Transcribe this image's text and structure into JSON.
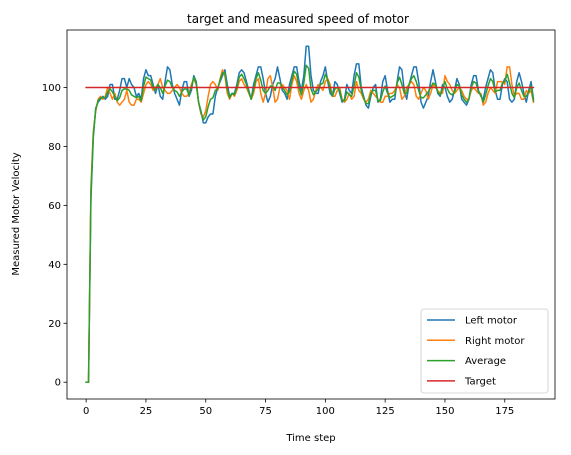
{
  "chart_data": {
    "type": "line",
    "title": "target and measured speed of motor",
    "xlabel": "Time step",
    "ylabel": "Measured Motor Velocity",
    "xlim": [
      -8,
      196
    ],
    "ylim": [
      -5.7,
      119.5
    ],
    "xticks": [
      0,
      25,
      50,
      75,
      100,
      125,
      150,
      175
    ],
    "yticks": [
      0,
      20,
      40,
      60,
      80,
      100
    ],
    "legend_position": "lower-right",
    "grid": false,
    "series": [
      {
        "name": "Left motor",
        "color": "#1f77b4",
        "x": [
          0,
          1,
          2,
          3,
          4,
          5,
          6,
          7,
          8,
          9,
          10,
          11,
          12,
          13,
          14,
          15,
          16,
          17,
          18,
          19,
          20,
          21,
          22,
          23,
          24,
          25,
          26,
          27,
          28,
          29,
          30,
          31,
          32,
          33,
          34,
          35,
          36,
          37,
          38,
          39,
          40,
          41,
          42,
          43,
          44,
          45,
          46,
          47,
          48,
          49,
          50,
          51,
          52,
          53,
          54,
          55,
          56,
          57,
          58,
          59,
          60,
          61,
          62,
          63,
          64,
          65,
          66,
          67,
          68,
          69,
          70,
          71,
          72,
          73,
          74,
          75,
          76,
          77,
          78,
          79,
          80,
          81,
          82,
          83,
          84,
          85,
          86,
          87,
          88,
          89,
          90,
          91,
          92,
          93,
          94,
          95,
          96,
          97,
          98,
          99,
          100,
          101,
          102,
          103,
          104,
          105,
          106,
          107,
          108,
          109,
          110,
          111,
          112,
          113,
          114,
          115,
          116,
          117,
          118,
          119,
          120,
          121,
          122,
          123,
          124,
          125,
          126,
          127,
          128,
          129,
          130,
          131,
          132,
          133,
          134,
          135,
          136,
          137,
          138,
          139,
          140,
          141,
          142,
          143,
          144,
          145,
          146,
          147,
          148,
          149,
          150,
          151,
          152,
          153,
          154,
          155,
          156,
          157,
          158,
          159,
          160,
          161,
          162,
          163,
          164,
          165,
          166,
          167,
          168,
          169,
          170,
          171,
          172,
          173,
          174,
          175,
          176,
          177,
          178,
          179,
          180,
          181,
          182,
          183,
          184,
          185,
          186,
          187
        ],
        "values": [
          0,
          0,
          62,
          83,
          93,
          95,
          96,
          97,
          96,
          97,
          101,
          101,
          96,
          96,
          99,
          103,
          103,
          100,
          103,
          101,
          100,
          97,
          98,
          96,
          103,
          106,
          104,
          104,
          101,
          98,
          101,
          97,
          96,
          102,
          107,
          106,
          101,
          98,
          96,
          94,
          99,
          102,
          102,
          97,
          99,
          104,
          102,
          95,
          92,
          88,
          88,
          90,
          91,
          91,
          97,
          100,
          102,
          104,
          106,
          101,
          97,
          98,
          98,
          101,
          105,
          106,
          105,
          102,
          99,
          96,
          101,
          104,
          107,
          107,
          103,
          98,
          95,
          97,
          101,
          103,
          107,
          103,
          99,
          98,
          96,
          101,
          104,
          107,
          107,
          102,
          99,
          104,
          114,
          114,
          104,
          99,
          98,
          98,
          102,
          104,
          107,
          102,
          98,
          97,
          102,
          101,
          98,
          95,
          96,
          101,
          99,
          98,
          104,
          108,
          108,
          100,
          97,
          94,
          93,
          97,
          100,
          101,
          95,
          96,
          102,
          104,
          99,
          95,
          96,
          96,
          102,
          107,
          106,
          99,
          96,
          101,
          104,
          107,
          107,
          102,
          95,
          93,
          95,
          97,
          102,
          106,
          102,
          98,
          97,
          101,
          100,
          97,
          95,
          96,
          99,
          103,
          101,
          96,
          95,
          94,
          96,
          101,
          104,
          104,
          99,
          97,
          96,
          100,
          103,
          106,
          105,
          99,
          96,
          96,
          101,
          103,
          102,
          96,
          95,
          96,
          102,
          105,
          102,
          98,
          95,
          99,
          102,
          96
        ]
      },
      {
        "name": "Right motor",
        "color": "#ff7f0e",
        "x": [
          0,
          1,
          2,
          3,
          4,
          5,
          6,
          7,
          8,
          9,
          10,
          11,
          12,
          13,
          14,
          15,
          16,
          17,
          18,
          19,
          20,
          21,
          22,
          23,
          24,
          25,
          26,
          27,
          28,
          29,
          30,
          31,
          32,
          33,
          34,
          35,
          36,
          37,
          38,
          39,
          40,
          41,
          42,
          43,
          44,
          45,
          46,
          47,
          48,
          49,
          50,
          51,
          52,
          53,
          54,
          55,
          56,
          57,
          58,
          59,
          60,
          61,
          62,
          63,
          64,
          65,
          66,
          67,
          68,
          69,
          70,
          71,
          72,
          73,
          74,
          75,
          76,
          77,
          78,
          79,
          80,
          81,
          82,
          83,
          84,
          85,
          86,
          87,
          88,
          89,
          90,
          91,
          92,
          93,
          94,
          95,
          96,
          97,
          98,
          99,
          100,
          101,
          102,
          103,
          104,
          105,
          106,
          107,
          108,
          109,
          110,
          111,
          112,
          113,
          114,
          115,
          116,
          117,
          118,
          119,
          120,
          121,
          122,
          123,
          124,
          125,
          126,
          127,
          128,
          129,
          130,
          131,
          132,
          133,
          134,
          135,
          136,
          137,
          138,
          139,
          140,
          141,
          142,
          143,
          144,
          145,
          146,
          147,
          148,
          149,
          150,
          151,
          152,
          153,
          154,
          155,
          156,
          157,
          158,
          159,
          160,
          161,
          162,
          163,
          164,
          165,
          166,
          167,
          168,
          169,
          170,
          171,
          172,
          173,
          174,
          175,
          176,
          177,
          178,
          179,
          180,
          181,
          182,
          183,
          184,
          185,
          186,
          187
        ],
        "values": [
          0,
          0,
          66,
          85,
          92,
          96,
          97,
          96,
          97,
          100,
          98,
          96,
          98,
          95,
          94,
          95,
          96,
          99,
          95,
          94,
          94,
          96,
          96,
          95,
          98,
          101,
          102,
          101,
          99,
          100,
          101,
          103,
          100,
          99,
          98,
          98,
          99,
          100,
          101,
          100,
          98,
          97,
          97,
          98,
          101,
          103,
          101,
          95,
          91,
          90,
          92,
          97,
          101,
          102,
          101,
          99,
          103,
          106,
          104,
          98,
          96,
          98,
          97,
          99,
          102,
          103,
          101,
          100,
          98,
          96,
          98,
          102,
          103,
          98,
          95,
          98,
          103,
          104,
          100,
          95,
          96,
          100,
          101,
          100,
          99,
          96,
          101,
          104,
          102,
          98,
          96,
          99,
          101,
          99,
          95,
          96,
          99,
          101,
          100,
          99,
          102,
          103,
          101,
          97,
          97,
          99,
          100,
          96,
          95,
          96,
          98,
          96,
          97,
          102,
          99,
          98,
          96,
          95,
          96,
          99,
          98,
          97,
          96,
          95,
          95,
          97,
          97,
          98,
          98,
          99,
          101,
          100,
          96,
          97,
          100,
          101,
          102,
          101,
          97,
          96,
          98,
          100,
          99,
          96,
          98,
          101,
          100,
          99,
          98,
          98,
          104,
          102,
          101,
          99,
          98,
          99,
          100,
          99,
          97,
          96,
          96,
          99,
          100,
          99,
          98,
          98,
          94,
          95,
          98,
          100,
          99,
          98,
          102,
          102,
          102,
          101,
          107,
          107,
          101,
          97,
          98,
          98,
          96,
          96,
          99,
          98,
          99,
          95
        ]
      },
      {
        "name": "Average",
        "color": "#2ca02c",
        "x": [
          0,
          1,
          2,
          3,
          4,
          5,
          6,
          7,
          8,
          9,
          10,
          11,
          12,
          13,
          14,
          15,
          16,
          17,
          18,
          19,
          20,
          21,
          22,
          23,
          24,
          25,
          26,
          27,
          28,
          29,
          30,
          31,
          32,
          33,
          34,
          35,
          36,
          37,
          38,
          39,
          40,
          41,
          42,
          43,
          44,
          45,
          46,
          47,
          48,
          49,
          50,
          51,
          52,
          53,
          54,
          55,
          56,
          57,
          58,
          59,
          60,
          61,
          62,
          63,
          64,
          65,
          66,
          67,
          68,
          69,
          70,
          71,
          72,
          73,
          74,
          75,
          76,
          77,
          78,
          79,
          80,
          81,
          82,
          83,
          84,
          85,
          86,
          87,
          88,
          89,
          90,
          91,
          92,
          93,
          94,
          95,
          96,
          97,
          98,
          99,
          100,
          101,
          102,
          103,
          104,
          105,
          106,
          107,
          108,
          109,
          110,
          111,
          112,
          113,
          114,
          115,
          116,
          117,
          118,
          119,
          120,
          121,
          122,
          123,
          124,
          125,
          126,
          127,
          128,
          129,
          130,
          131,
          132,
          133,
          134,
          135,
          136,
          137,
          138,
          139,
          140,
          141,
          142,
          143,
          144,
          145,
          146,
          147,
          148,
          149,
          150,
          151,
          152,
          153,
          154,
          155,
          156,
          157,
          158,
          159,
          160,
          161,
          162,
          163,
          164,
          165,
          166,
          167,
          168,
          169,
          170,
          171,
          172,
          173,
          174,
          175,
          176,
          177,
          178,
          179,
          180,
          181,
          182,
          183,
          184,
          185,
          186,
          187
        ],
        "values": [
          0,
          0,
          64,
          84,
          92.5,
          95.5,
          96.5,
          96.5,
          96.5,
          98.5,
          99.5,
          98.5,
          97,
          95.5,
          96.5,
          99,
          99.5,
          99.5,
          99,
          97.5,
          97,
          96.5,
          97,
          95.5,
          100.5,
          103.5,
          103,
          102.5,
          100,
          99,
          101,
          100,
          98,
          100.5,
          102.5,
          102,
          100,
          99,
          98.5,
          97,
          98.5,
          99.5,
          99.5,
          97.5,
          100,
          103.5,
          101.5,
          95,
          91.5,
          89,
          90,
          93.5,
          96,
          96.5,
          99,
          99.5,
          102.5,
          105,
          105,
          99.5,
          96.5,
          98,
          97.5,
          100,
          103.5,
          104.5,
          103,
          101,
          98.5,
          96,
          99.5,
          103,
          105,
          102.5,
          99,
          98,
          99,
          100.5,
          100.5,
          99,
          101.5,
          101.5,
          100,
          99,
          97.5,
          98.5,
          102.5,
          105.5,
          104.5,
          100,
          97.5,
          101.5,
          107.5,
          106.5,
          99.5,
          97.5,
          98.5,
          99.5,
          101,
          101.5,
          104.5,
          102.5,
          99.5,
          97,
          99.5,
          100,
          99,
          95.5,
          95.5,
          98.5,
          97.5,
          97,
          100.5,
          105,
          103.5,
          99,
          96.5,
          94.5,
          94.5,
          98,
          99,
          99,
          95.5,
          95.5,
          98.5,
          100.5,
          98,
          96.5,
          97,
          97.5,
          101.5,
          103.5,
          101,
          98,
          98,
          101,
          103,
          104,
          102,
          99,
          96.5,
          96.5,
          97.5,
          98.5,
          100,
          101.5,
          101,
          98.5,
          97.5,
          99.5,
          102,
          99.5,
          98,
          97.5,
          98.5,
          101,
          100.5,
          97.5,
          96,
          95,
          96,
          100,
          102,
          101.5,
          98.5,
          97.5,
          95,
          97.5,
          100.5,
          103,
          102,
          98.5,
          99,
          99,
          101.5,
          102,
          104.5,
          101.5,
          98,
          96.5,
          100,
          101.5,
          99,
          97,
          97,
          98.5,
          100.5,
          95.5
        ]
      },
      {
        "name": "Target",
        "color": "#d62728",
        "x": [
          0,
          187
        ],
        "values": [
          100,
          100
        ]
      }
    ]
  }
}
